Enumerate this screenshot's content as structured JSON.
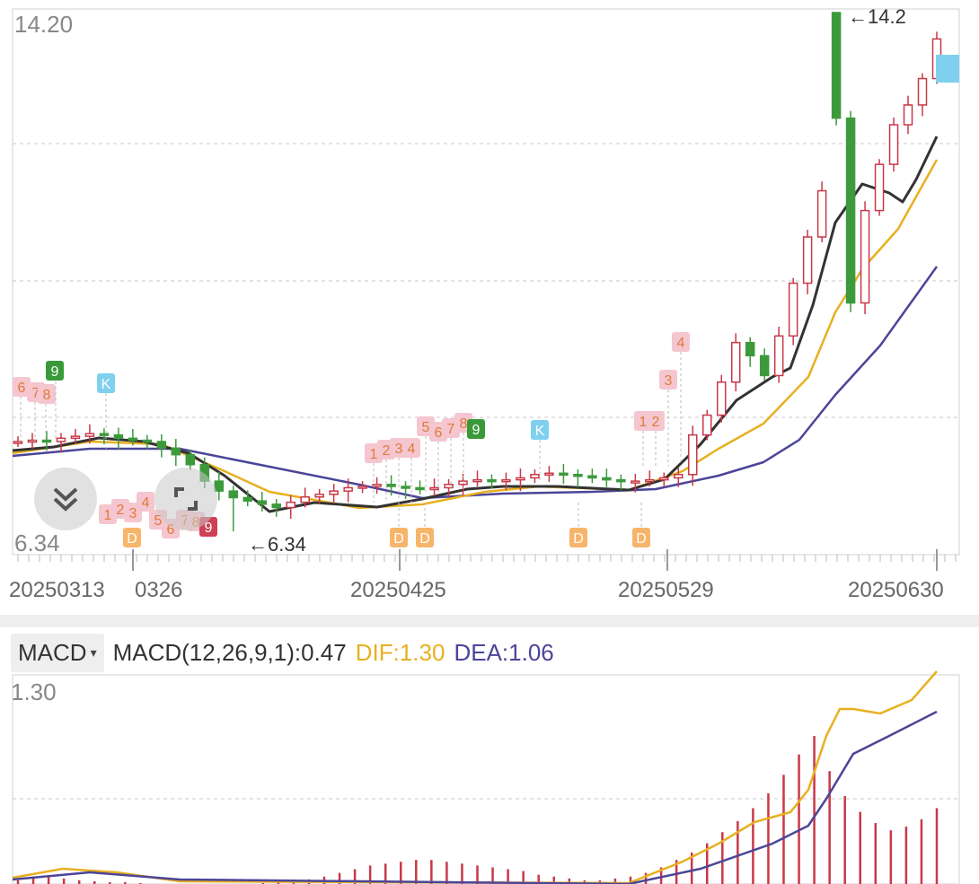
{
  "colors": {
    "up": "#c83848",
    "down": "#3c9a3c",
    "ma_black": "#333333",
    "ma_yellow": "#e8b020",
    "ma_purple": "#4b4598",
    "grid": "#c8c8c8",
    "label_text": "#888888",
    "date_text": "#666666",
    "pink_box": "#f5c6cf",
    "pink_text": "#e07a3a",
    "green_box": "#3a9a3a",
    "cyan_box": "#7fd0ee",
    "orange_box": "#f7b56b",
    "red_box": "#d04055"
  },
  "main_chart": {
    "y_max_label": "14.20",
    "y_min_label": "6.34",
    "high_marker": "←14.2",
    "low_marker": "←6.34",
    "dates": [
      "20250313",
      "0326",
      "20250425",
      "20250529",
      "20250630"
    ]
  },
  "indicator": {
    "selector_label": "MACD",
    "caret_icon": "▾",
    "macd_text": "MACD(12,26,9,1):0.47",
    "dif_text": "DIF:1.30",
    "dea_text": "DEA:1.06",
    "y_label": "1.30"
  },
  "signals": {
    "top_pink_left": [
      "6",
      "7",
      "8"
    ],
    "top_green_9a": "9",
    "top_k_a": "K",
    "bottom_pink_left": [
      "1",
      "2",
      "3",
      "4",
      "5",
      "6",
      "7",
      "8"
    ],
    "bottom_red_9": "9",
    "mid_pink": [
      "1",
      "2",
      "3",
      "4"
    ],
    "mid_pink2": [
      "5",
      "6",
      "7",
      "8"
    ],
    "mid_green_9": "9",
    "top_k_b": "K",
    "right_pink": [
      "1",
      "2",
      "3",
      "4"
    ],
    "d_label": "D"
  },
  "chart_data": {
    "type": "candlestick",
    "title": "",
    "x_labels": [
      "20250313",
      "0326",
      "20250425",
      "20250529",
      "20250630"
    ],
    "ylim": [
      6.34,
      14.2
    ],
    "price_high": 14.2,
    "price_low": 6.34,
    "series": [
      {
        "name": "MACD(12,26,9,1)",
        "value": 0.47
      },
      {
        "name": "DIF",
        "value": 1.3
      },
      {
        "name": "DEA",
        "value": 1.06
      }
    ],
    "candles_close": [
      7.7,
      7.72,
      7.7,
      7.75,
      7.78,
      7.82,
      7.8,
      7.75,
      7.72,
      7.7,
      7.6,
      7.5,
      7.35,
      7.1,
      6.95,
      6.85,
      6.8,
      6.75,
      6.7,
      6.78,
      6.86,
      6.9,
      6.95,
      7.0,
      7.02,
      7.05,
      7.02,
      7.0,
      6.98,
      7.0,
      7.05,
      7.1,
      7.12,
      7.1,
      7.12,
      7.15,
      7.2,
      7.22,
      7.2,
      7.18,
      7.15,
      7.12,
      7.1,
      7.1,
      7.12,
      7.15,
      7.2,
      7.8,
      8.1,
      8.6,
      9.2,
      9.0,
      8.7,
      9.3,
      10.1,
      10.8,
      11.5,
      12.6,
      9.8,
      11.2,
      11.9,
      12.5,
      12.8,
      13.2,
      13.8
    ]
  }
}
